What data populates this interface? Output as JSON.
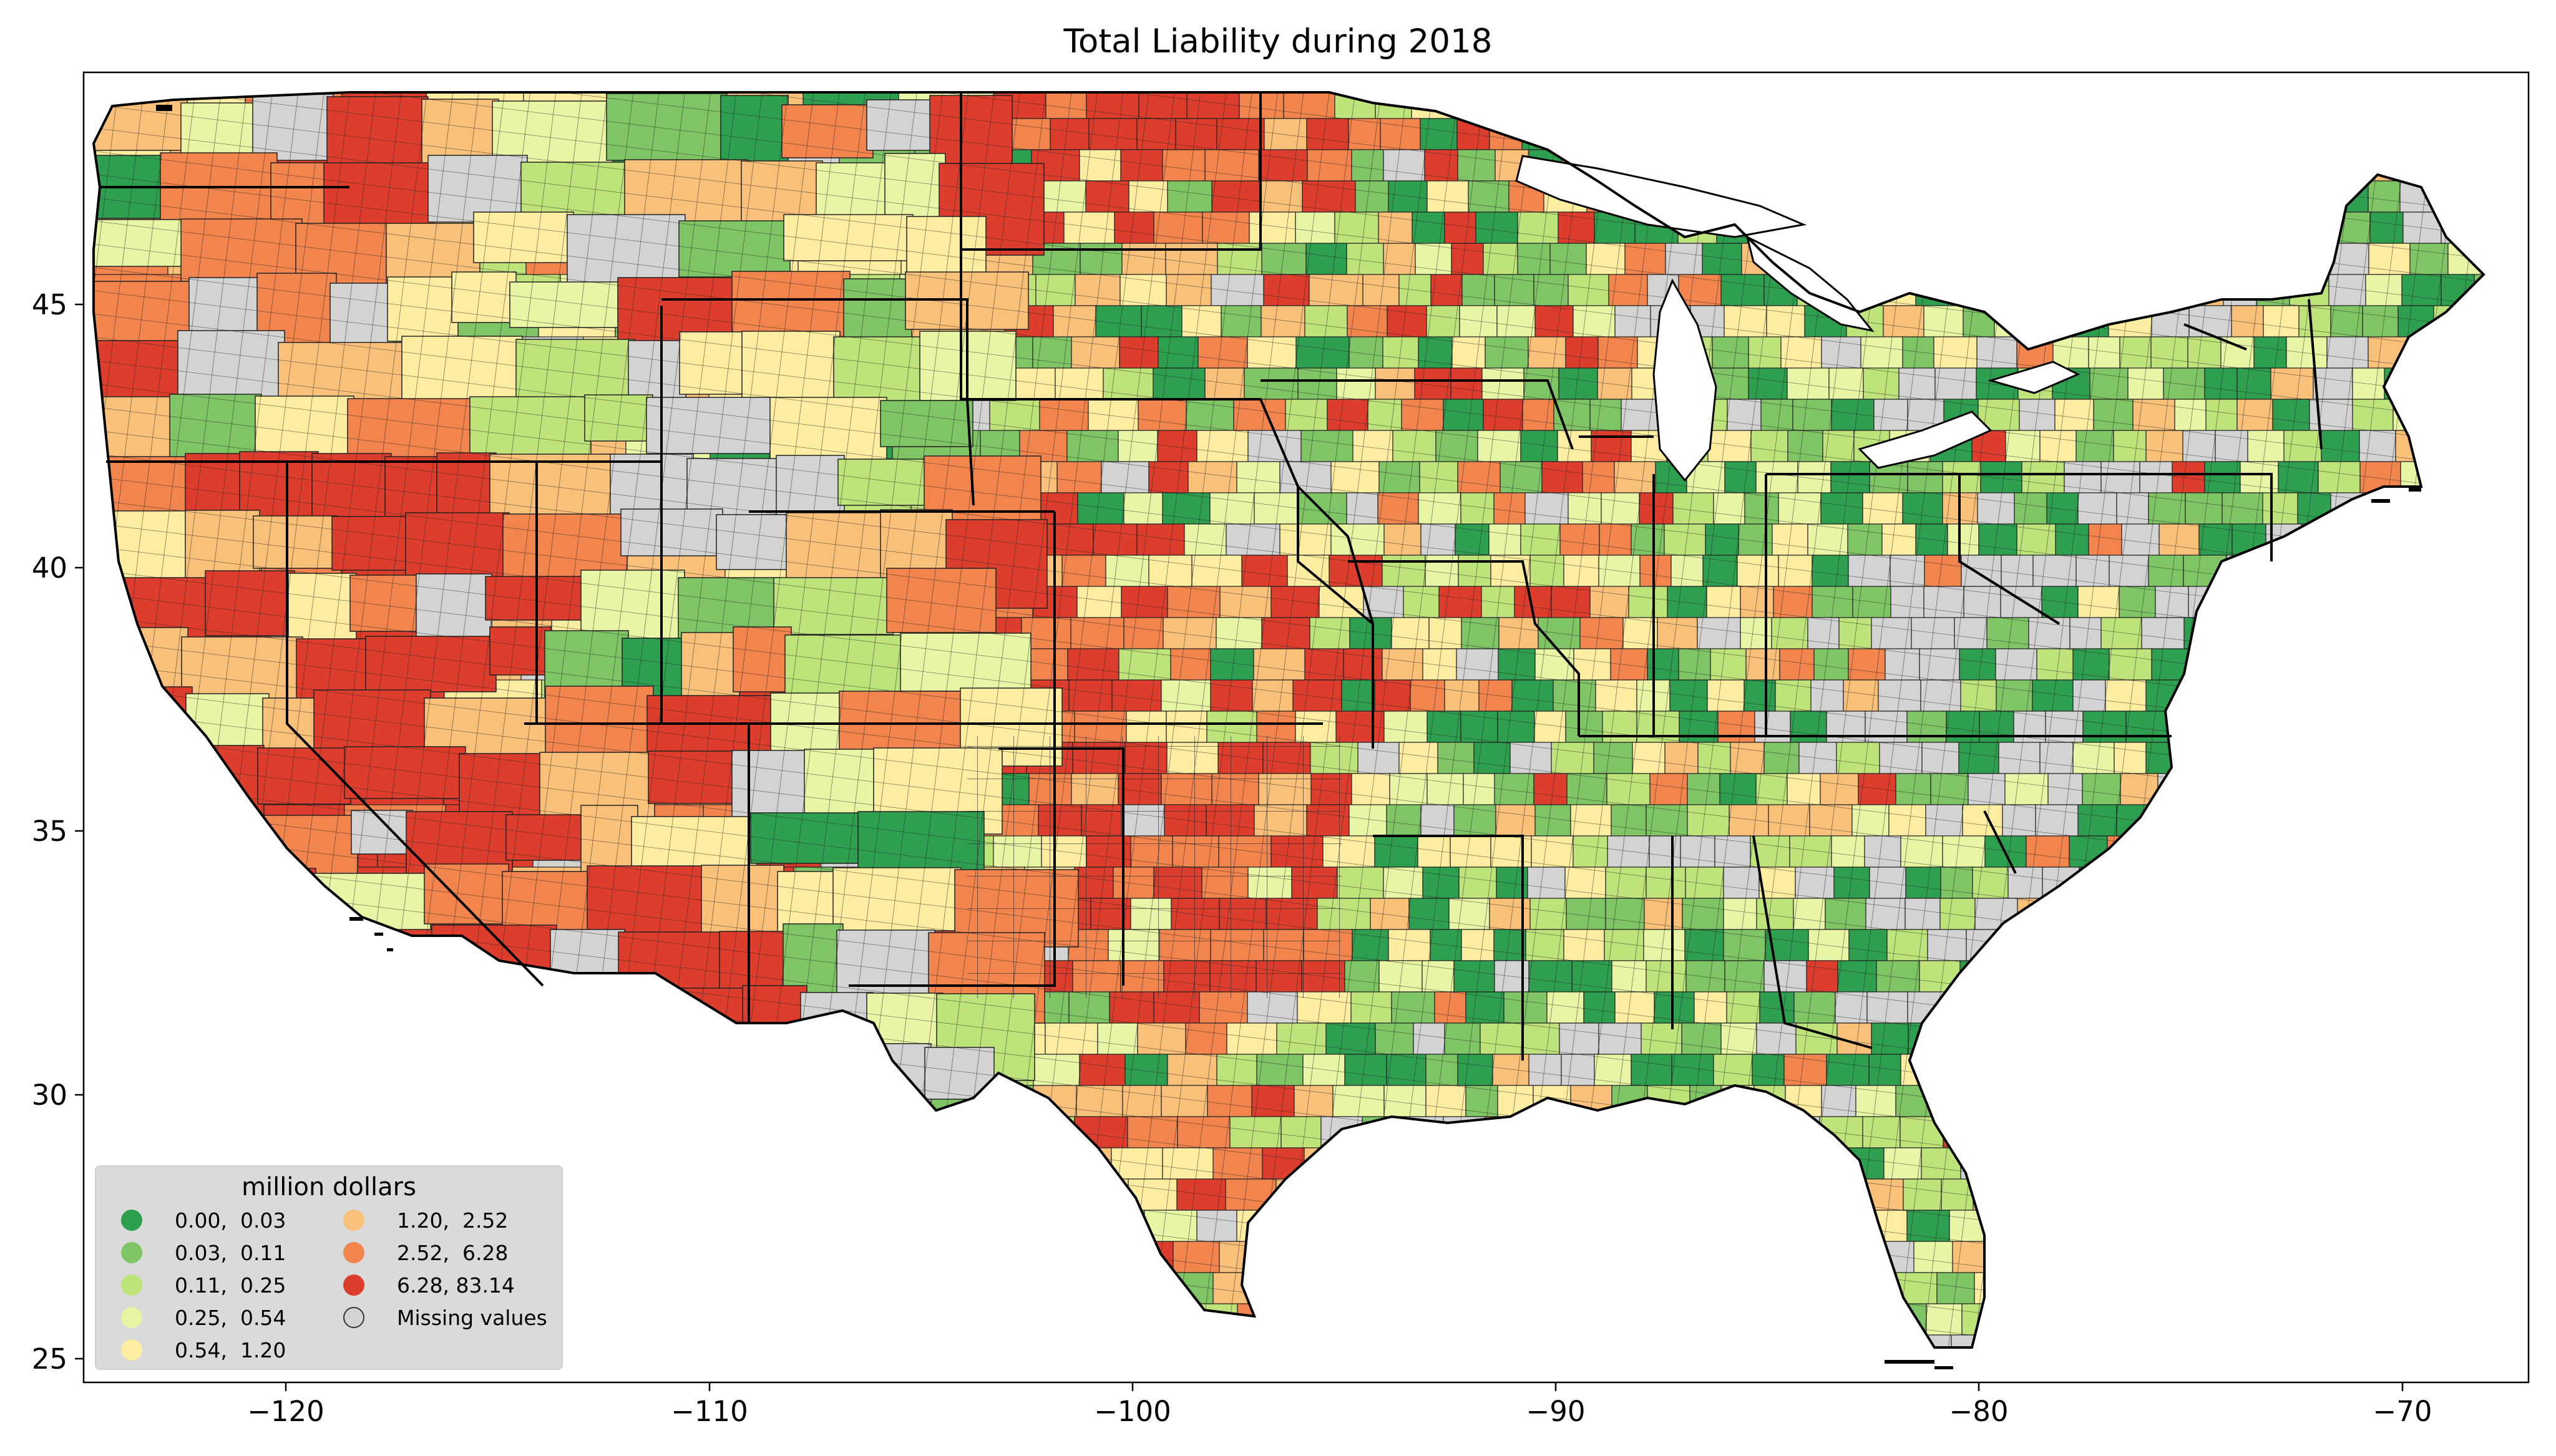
{
  "title": "Total Liability during 2018",
  "legend": {
    "title": "million dollars",
    "items": [
      {
        "label": "0.00,  0.03",
        "color": "#2e9e4f"
      },
      {
        "label": "0.03,  0.11",
        "color": "#7fc565"
      },
      {
        "label": "0.11,  0.25",
        "color": "#bde37a"
      },
      {
        "label": "0.25,  0.54",
        "color": "#e8f5a4"
      },
      {
        "label": "0.54,  1.20",
        "color": "#fdeda0"
      },
      {
        "label": "1.20,  2.52",
        "color": "#f9c07a"
      },
      {
        "label": "2.52,  6.28",
        "color": "#f2844e"
      },
      {
        "label": "6.28, 83.14",
        "color": "#dc3d2d"
      },
      {
        "label": "Missing values",
        "color": "#d3d3d3"
      }
    ]
  },
  "axes": {
    "x_ticks": [
      "−120",
      "−110",
      "−100",
      "−90",
      "−80",
      "−70"
    ],
    "y_ticks": [
      "45",
      "40",
      "35",
      "30",
      "25"
    ]
  },
  "map_data": {
    "type": "choropleth",
    "region": "Contiguous United States counties",
    "xlim": [
      -124.8,
      -66.5
    ],
    "ylim": [
      24.5,
      49.4
    ]
  }
}
